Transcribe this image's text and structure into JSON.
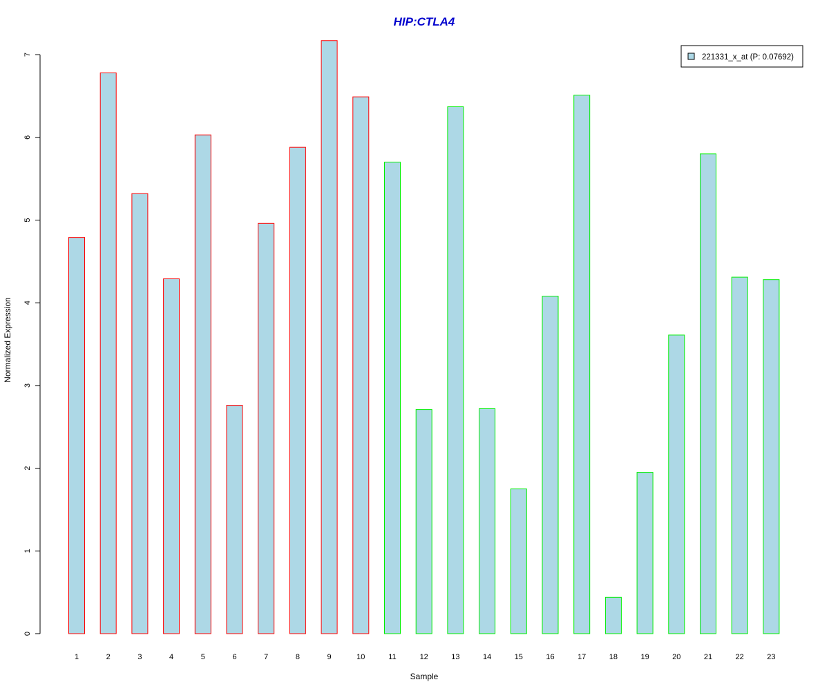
{
  "chart_data": {
    "type": "bar",
    "title": "HIP:CTLA4",
    "title_color": "#0000CD",
    "xlabel": "Sample",
    "ylabel": "Normalized Expression",
    "categories": [
      "1",
      "2",
      "3",
      "4",
      "5",
      "6",
      "7",
      "8",
      "9",
      "10",
      "11",
      "12",
      "13",
      "14",
      "15",
      "16",
      "17",
      "18",
      "19",
      "20",
      "21",
      "22",
      "23"
    ],
    "series": [
      {
        "name": "221331_x_at (P: 0.07692)",
        "values": [
          4.79,
          6.78,
          5.32,
          4.29,
          6.03,
          2.76,
          4.96,
          5.88,
          7.17,
          6.49,
          5.7,
          2.71,
          6.37,
          2.72,
          1.75,
          4.08,
          6.51,
          0.44,
          1.95,
          3.61,
          5.8,
          4.31,
          4.28
        ]
      }
    ],
    "groups": [
      {
        "samples": [
          "1",
          "2",
          "3",
          "4",
          "5",
          "6",
          "7",
          "8",
          "9",
          "10"
        ],
        "border_color": "#FF0000"
      },
      {
        "samples": [
          "11",
          "12",
          "13",
          "14",
          "15",
          "16",
          "17",
          "18",
          "19",
          "20",
          "21",
          "22",
          "23"
        ],
        "border_color": "#00EE00"
      }
    ],
    "fill_color": "#ADD8E6",
    "yticks": [
      0,
      1,
      2,
      3,
      4,
      5,
      6,
      7
    ],
    "ylim": [
      0,
      7.3
    ],
    "grid": false,
    "legend_position": "top-right"
  }
}
